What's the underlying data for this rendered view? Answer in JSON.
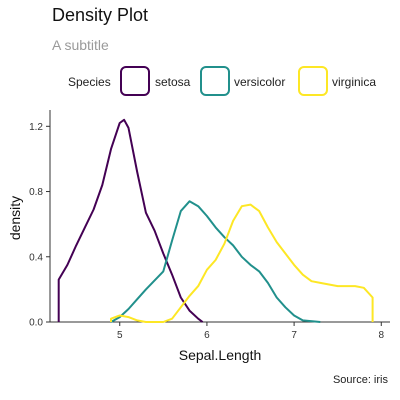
{
  "chart_data": {
    "type": "line",
    "title": "Density Plot",
    "subtitle": "A subtitle",
    "xlabel": "Sepal.Length",
    "ylabel": "density",
    "caption": "Source: iris",
    "xlim": [
      4.2,
      8.1
    ],
    "ylim": [
      0,
      1.3
    ],
    "xticks": [
      5,
      6,
      7,
      8
    ],
    "yticks": [
      0.0,
      0.4,
      0.8,
      1.2
    ],
    "ytick_labels": [
      "0.0",
      "0.4",
      "0.8",
      "1.2"
    ],
    "grid": false,
    "legend": {
      "title": "Species",
      "position": "top"
    },
    "series": [
      {
        "name": "setosa",
        "color": "#440154",
        "points": [
          [
            4.3,
            0.0
          ],
          [
            4.3,
            0.26
          ],
          [
            4.4,
            0.35
          ],
          [
            4.5,
            0.47
          ],
          [
            4.6,
            0.58
          ],
          [
            4.7,
            0.69
          ],
          [
            4.8,
            0.84
          ],
          [
            4.9,
            1.06
          ],
          [
            5.0,
            1.22
          ],
          [
            5.05,
            1.24
          ],
          [
            5.1,
            1.19
          ],
          [
            5.2,
            0.92
          ],
          [
            5.3,
            0.67
          ],
          [
            5.4,
            0.56
          ],
          [
            5.5,
            0.42
          ],
          [
            5.6,
            0.29
          ],
          [
            5.7,
            0.15
          ],
          [
            5.8,
            0.07
          ],
          [
            5.9,
            0.02
          ],
          [
            5.95,
            0.0
          ]
        ]
      },
      {
        "name": "versicolor",
        "color": "#21908C",
        "points": [
          [
            4.9,
            0.0
          ],
          [
            5.0,
            0.03
          ],
          [
            5.1,
            0.08
          ],
          [
            5.2,
            0.14
          ],
          [
            5.3,
            0.2
          ],
          [
            5.5,
            0.31
          ],
          [
            5.6,
            0.5
          ],
          [
            5.7,
            0.68
          ],
          [
            5.8,
            0.74
          ],
          [
            5.9,
            0.71
          ],
          [
            6.0,
            0.65
          ],
          [
            6.1,
            0.58
          ],
          [
            6.2,
            0.52
          ],
          [
            6.3,
            0.47
          ],
          [
            6.4,
            0.4
          ],
          [
            6.5,
            0.35
          ],
          [
            6.6,
            0.31
          ],
          [
            6.7,
            0.24
          ],
          [
            6.8,
            0.15
          ],
          [
            6.9,
            0.09
          ],
          [
            7.0,
            0.04
          ],
          [
            7.1,
            0.01
          ],
          [
            7.3,
            0.0
          ]
        ]
      },
      {
        "name": "virginica",
        "color": "#FDE725",
        "points": [
          [
            4.9,
            0.0
          ],
          [
            4.9,
            0.02
          ],
          [
            5.0,
            0.04
          ],
          [
            5.1,
            0.03
          ],
          [
            5.2,
            0.01
          ],
          [
            5.3,
            0.0
          ],
          [
            5.5,
            0.0
          ],
          [
            5.6,
            0.02
          ],
          [
            5.8,
            0.16
          ],
          [
            5.9,
            0.22
          ],
          [
            6.0,
            0.32
          ],
          [
            6.1,
            0.38
          ],
          [
            6.2,
            0.48
          ],
          [
            6.3,
            0.62
          ],
          [
            6.4,
            0.71
          ],
          [
            6.5,
            0.72
          ],
          [
            6.6,
            0.68
          ],
          [
            6.7,
            0.58
          ],
          [
            6.8,
            0.49
          ],
          [
            6.9,
            0.42
          ],
          [
            7.0,
            0.35
          ],
          [
            7.1,
            0.29
          ],
          [
            7.2,
            0.25
          ],
          [
            7.3,
            0.24
          ],
          [
            7.4,
            0.23
          ],
          [
            7.5,
            0.22
          ],
          [
            7.6,
            0.22
          ],
          [
            7.7,
            0.22
          ],
          [
            7.8,
            0.21
          ],
          [
            7.9,
            0.15
          ],
          [
            7.9,
            0.0
          ]
        ]
      }
    ]
  }
}
